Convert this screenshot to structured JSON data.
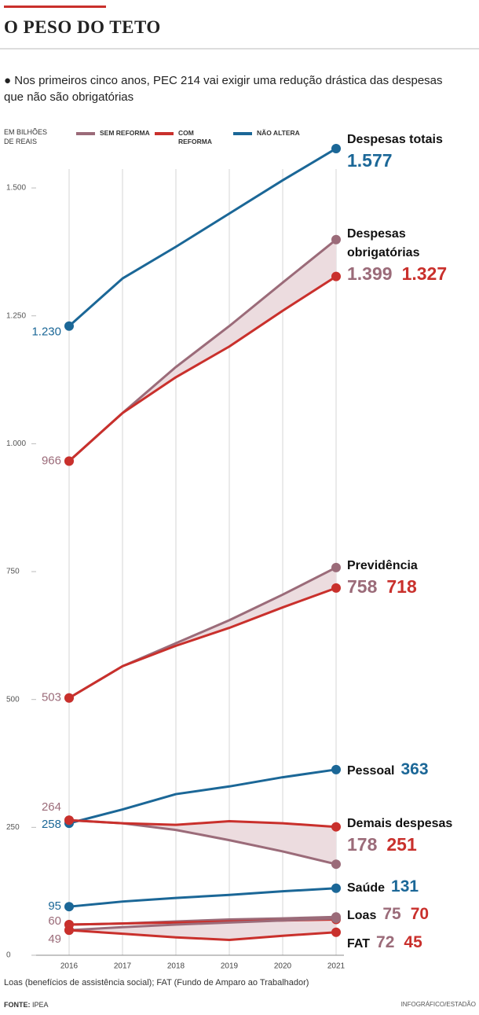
{
  "chart_data": {
    "type": "line",
    "title": "O PESO DO TETO",
    "subtitle": "Nos primeiros cinco anos, PEC 214 vai exigir uma redução drástica das despesas que não são obrigatórias",
    "unit": "EM BILHÕES DE REAIS",
    "legend": [
      {
        "name": "SEM REFORMA",
        "color": "#9b6b79"
      },
      {
        "name": "COM REFORMA",
        "color": "#c9302c"
      },
      {
        "name": "NÃO ALTERA",
        "color": "#1b6797"
      }
    ],
    "x": [
      2016,
      2017,
      2018,
      2019,
      2020,
      2021
    ],
    "ylim": [
      0,
      1600
    ],
    "yticks": [
      0,
      250,
      500,
      750,
      {
        "value": 1000,
        "label": "1.000"
      },
      {
        "value": 1250,
        "label": "1.250"
      },
      {
        "value": 1500,
        "label": "1.500"
      }
    ],
    "groups": [
      {
        "name": "Despesas totais",
        "series": [
          {
            "legend": 2,
            "values": [
              1230,
              1323,
              1385,
              1450,
              1515,
              1577
            ],
            "value_labels": [
              "1.230",
              null,
              null,
              null,
              null,
              "1.577"
            ]
          }
        ]
      },
      {
        "name": "Despesas obrigatórias",
        "series": [
          {
            "legend": 0,
            "values": [
              966,
              1060,
              1150,
              1230,
              1315,
              1399
            ],
            "value_labels": [
              null,
              null,
              null,
              null,
              null,
              "1.399"
            ]
          },
          {
            "legend": 1,
            "values": [
              966,
              1060,
              1130,
              1190,
              1260,
              1327
            ],
            "value_labels": [
              null,
              null,
              null,
              null,
              null,
              "1.327"
            ]
          }
        ]
      },
      {
        "name": "Previdência",
        "series": [
          {
            "legend": 0,
            "values": [
              503,
              565,
              610,
              655,
              705,
              758
            ]
          },
          {
            "legend": 1,
            "values": [
              503,
              565,
              605,
              640,
              680,
              718
            ]
          }
        ]
      },
      {
        "name": "Pessoal",
        "series": [
          {
            "legend": 2,
            "values": [
              258,
              285,
              315,
              330,
              348,
              363
            ]
          }
        ]
      },
      {
        "name": "Demais despesas",
        "series": [
          {
            "legend": 0,
            "values": [
              264,
              258,
              245,
              225,
              203,
              178
            ]
          },
          {
            "legend": 1,
            "values": [
              264,
              258,
              255,
              262,
              258,
              251
            ]
          }
        ]
      },
      {
        "name": "Saúde",
        "series": [
          {
            "legend": 2,
            "values": [
              95,
              105,
              112,
              118,
              125,
              131
            ]
          }
        ]
      },
      {
        "name": "Loas",
        "series": [
          {
            "legend": 0,
            "values": [
              60,
              62,
              66,
              70,
              72,
              75
            ]
          },
          {
            "legend": 1,
            "values": [
              60,
              62,
              64,
              66,
              68,
              70
            ]
          }
        ]
      },
      {
        "name": "FAT",
        "series": [
          {
            "legend": 0,
            "values": [
              49,
              55,
              60,
              64,
              68,
              72
            ]
          },
          {
            "legend": 1,
            "values": [
              49,
              42,
              35,
              30,
              38,
              45
            ]
          }
        ]
      }
    ],
    "note": "Loas (benefícios de assistência social); FAT (Fundo de Amparo ao Trabalhador)",
    "source_label": "FONTE:",
    "source": "IPEA",
    "credit": "INFOGRÁFICO/ESTADÃO"
  }
}
